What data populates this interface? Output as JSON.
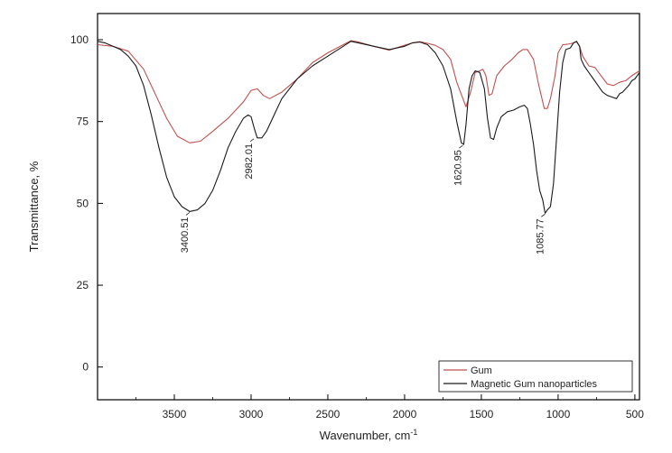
{
  "chart_data": {
    "type": "line",
    "title": "",
    "xlabel": "Wavenumber, cm",
    "xlabel_superscript": "-1",
    "ylabel": "Transmittance, %",
    "x_reversed": true,
    "xlim": [
      4000,
      470
    ],
    "ylim": [
      -10,
      108
    ],
    "x_ticks": [
      3500,
      3000,
      2500,
      2000,
      1500,
      1000,
      500
    ],
    "y_ticks": [
      0,
      25,
      50,
      75,
      100
    ],
    "legend_position": "bottom-right",
    "series": [
      {
        "name": "Gum",
        "color": "#c0504d",
        "points": [
          [
            4000,
            98.5
          ],
          [
            3900,
            98
          ],
          [
            3800,
            96.5
          ],
          [
            3700,
            91
          ],
          [
            3620,
            83
          ],
          [
            3550,
            76
          ],
          [
            3480,
            70.5
          ],
          [
            3400,
            68.5
          ],
          [
            3330,
            69
          ],
          [
            3250,
            72
          ],
          [
            3150,
            76
          ],
          [
            3050,
            81
          ],
          [
            3000,
            84.5
          ],
          [
            2960,
            85
          ],
          [
            2920,
            83
          ],
          [
            2880,
            82
          ],
          [
            2800,
            84
          ],
          [
            2700,
            88
          ],
          [
            2600,
            93
          ],
          [
            2500,
            96
          ],
          [
            2400,
            98.5
          ],
          [
            2350,
            99.7
          ],
          [
            2300,
            99.3
          ],
          [
            2200,
            98
          ],
          [
            2100,
            96.8
          ],
          [
            2000,
            98.3
          ],
          [
            1950,
            99
          ],
          [
            1900,
            99.4
          ],
          [
            1850,
            98.9
          ],
          [
            1800,
            98.3
          ],
          [
            1750,
            97
          ],
          [
            1700,
            94
          ],
          [
            1660,
            87
          ],
          [
            1620,
            82
          ],
          [
            1600,
            79.5
          ],
          [
            1570,
            84
          ],
          [
            1540,
            90
          ],
          [
            1510,
            90.5
          ],
          [
            1490,
            91
          ],
          [
            1470,
            89
          ],
          [
            1450,
            83
          ],
          [
            1430,
            83.5
          ],
          [
            1400,
            89
          ],
          [
            1350,
            92
          ],
          [
            1300,
            94
          ],
          [
            1260,
            96
          ],
          [
            1230,
            97
          ],
          [
            1200,
            97
          ],
          [
            1160,
            94
          ],
          [
            1130,
            87
          ],
          [
            1110,
            83
          ],
          [
            1090,
            79
          ],
          [
            1070,
            79
          ],
          [
            1050,
            82
          ],
          [
            1020,
            89
          ],
          [
            1000,
            96
          ],
          [
            970,
            98.5
          ],
          [
            940,
            98.6
          ],
          [
            900,
            99
          ],
          [
            880,
            99.4
          ],
          [
            860,
            98
          ],
          [
            840,
            95
          ],
          [
            800,
            92
          ],
          [
            760,
            91.5
          ],
          [
            720,
            89
          ],
          [
            680,
            86.5
          ],
          [
            640,
            86
          ],
          [
            600,
            87
          ],
          [
            560,
            87.5
          ],
          [
            520,
            89
          ],
          [
            470,
            90.5
          ]
        ]
      },
      {
        "name": "Magnetic Gum nanoparticles",
        "color": "#1a1a1a",
        "points": [
          [
            4000,
            99.5
          ],
          [
            3950,
            99
          ],
          [
            3900,
            98
          ],
          [
            3850,
            97
          ],
          [
            3800,
            95
          ],
          [
            3750,
            92
          ],
          [
            3700,
            86
          ],
          [
            3650,
            77
          ],
          [
            3600,
            67
          ],
          [
            3550,
            58
          ],
          [
            3500,
            52
          ],
          [
            3450,
            49
          ],
          [
            3400,
            47.5
          ],
          [
            3350,
            48
          ],
          [
            3300,
            50
          ],
          [
            3250,
            54
          ],
          [
            3200,
            60
          ],
          [
            3150,
            67
          ],
          [
            3100,
            72
          ],
          [
            3050,
            76
          ],
          [
            3020,
            77
          ],
          [
            3000,
            76.5
          ],
          [
            2980,
            73
          ],
          [
            2960,
            70
          ],
          [
            2930,
            70
          ],
          [
            2900,
            72
          ],
          [
            2850,
            77
          ],
          [
            2800,
            82
          ],
          [
            2700,
            88
          ],
          [
            2600,
            92
          ],
          [
            2500,
            95
          ],
          [
            2400,
            98
          ],
          [
            2350,
            99.5
          ],
          [
            2300,
            99
          ],
          [
            2200,
            98
          ],
          [
            2100,
            97
          ],
          [
            2000,
            98
          ],
          [
            1950,
            99
          ],
          [
            1900,
            99.3
          ],
          [
            1850,
            98.5
          ],
          [
            1800,
            96
          ],
          [
            1750,
            92
          ],
          [
            1700,
            85
          ],
          [
            1660,
            75
          ],
          [
            1630,
            68.5
          ],
          [
            1615,
            68
          ],
          [
            1600,
            74
          ],
          [
            1580,
            85
          ],
          [
            1560,
            89
          ],
          [
            1540,
            90.5
          ],
          [
            1510,
            90
          ],
          [
            1480,
            85
          ],
          [
            1460,
            76
          ],
          [
            1440,
            70
          ],
          [
            1420,
            69.5
          ],
          [
            1400,
            73
          ],
          [
            1370,
            76.5
          ],
          [
            1330,
            78
          ],
          [
            1290,
            78.5
          ],
          [
            1250,
            79.5
          ],
          [
            1220,
            80
          ],
          [
            1200,
            79
          ],
          [
            1180,
            74
          ],
          [
            1160,
            68
          ],
          [
            1140,
            60
          ],
          [
            1120,
            54
          ],
          [
            1100,
            51
          ],
          [
            1085,
            47
          ],
          [
            1070,
            48
          ],
          [
            1050,
            49
          ],
          [
            1030,
            56
          ],
          [
            1010,
            70
          ],
          [
            990,
            84
          ],
          [
            970,
            93
          ],
          [
            950,
            97
          ],
          [
            920,
            97.5
          ],
          [
            900,
            99
          ],
          [
            880,
            99.5
          ],
          [
            860,
            98
          ],
          [
            850,
            94
          ],
          [
            830,
            92
          ],
          [
            800,
            90
          ],
          [
            770,
            88
          ],
          [
            740,
            86
          ],
          [
            710,
            84
          ],
          [
            680,
            83
          ],
          [
            650,
            82.5
          ],
          [
            620,
            82
          ],
          [
            600,
            83.5
          ],
          [
            580,
            84
          ],
          [
            560,
            85
          ],
          [
            540,
            86
          ],
          [
            520,
            87.5
          ],
          [
            500,
            88
          ],
          [
            470,
            90
          ]
        ]
      }
    ],
    "annotations": [
      {
        "label": "3400.51",
        "x": 3400.51,
        "y": 47.5
      },
      {
        "label": "2982.01",
        "x": 2982.01,
        "y": 70
      },
      {
        "label": "1620.95",
        "x": 1620.95,
        "y": 68
      },
      {
        "label": "1085.77",
        "x": 1085.77,
        "y": 47
      }
    ]
  }
}
